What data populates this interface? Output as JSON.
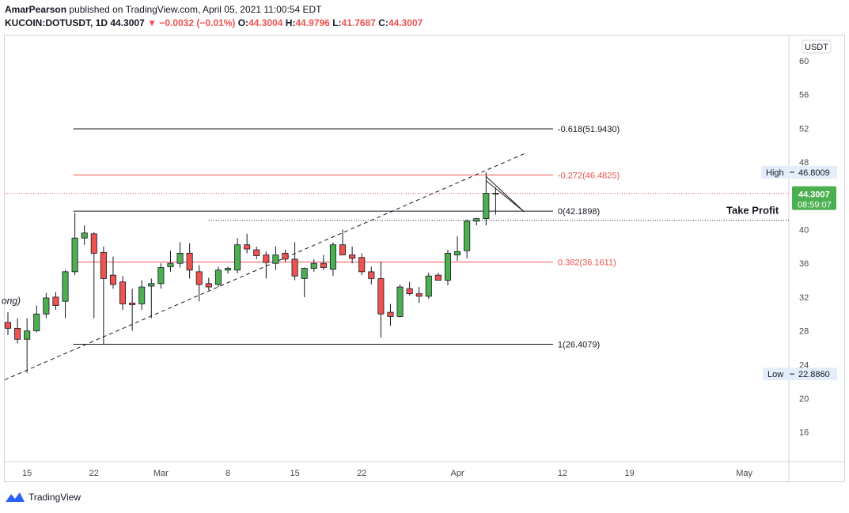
{
  "header": {
    "author": "AmarPearson",
    "published": "published on TradingView.com, April 05, 2021 11:00:54 EDT",
    "symbol": "KUCOIN:DOTUSDT, 1D",
    "last": "44.3007",
    "change": "▼ −0.0032 (−0.01%)",
    "open_label": "O:",
    "open": "44.3004",
    "high_label": "H:",
    "high": "44.9796",
    "low_label": "L:",
    "low": "41.7687",
    "close_label": "C:",
    "close": "44.3007"
  },
  "footer": {
    "brand": "TradingView"
  },
  "colors": {
    "up": "#4caf50",
    "down": "#ef5350",
    "wick": "#131722",
    "fib_red": "#ef5350",
    "fib_black": "#131722"
  },
  "chart_data": {
    "type": "candlestick",
    "currency": "USDT",
    "ylim": [
      12.5,
      63
    ],
    "y_ticks": [
      16,
      20,
      24,
      28,
      32,
      36,
      40,
      44,
      48,
      52,
      56,
      60
    ],
    "x_ticks": [
      {
        "date": "2021-02-15",
        "label": "15"
      },
      {
        "date": "2021-02-22",
        "label": "22"
      },
      {
        "date": "2021-03-01",
        "label": "Mar"
      },
      {
        "date": "2021-03-08",
        "label": "8"
      },
      {
        "date": "2021-03-15",
        "label": "15"
      },
      {
        "date": "2021-03-22",
        "label": "22"
      },
      {
        "date": "2021-04-01",
        "label": "Apr"
      },
      {
        "date": "2021-04-12",
        "label": "12"
      },
      {
        "date": "2021-04-19",
        "label": "19"
      },
      {
        "date": "2021-05-01",
        "label": "May"
      }
    ],
    "x_range": [
      "2021-02-13",
      "2021-05-05"
    ],
    "candles": [
      {
        "date": "2021-02-13",
        "o": 29.0,
        "h": 30.2,
        "l": 27.5,
        "c": 28.3
      },
      {
        "date": "2021-02-14",
        "o": 28.3,
        "h": 29.5,
        "l": 26.5,
        "c": 27.0
      },
      {
        "date": "2021-02-15",
        "o": 27.0,
        "h": 29.5,
        "l": 23.0,
        "c": 28.0
      },
      {
        "date": "2021-02-16",
        "o": 28.0,
        "h": 31.0,
        "l": 27.8,
        "c": 30.0
      },
      {
        "date": "2021-02-17",
        "o": 30.0,
        "h": 32.5,
        "l": 29.5,
        "c": 31.9
      },
      {
        "date": "2021-02-18",
        "o": 32.0,
        "h": 32.6,
        "l": 30.5,
        "c": 31.0
      },
      {
        "date": "2021-02-19",
        "o": 31.5,
        "h": 35.2,
        "l": 29.5,
        "c": 35.0
      },
      {
        "date": "2021-02-20",
        "o": 35.0,
        "h": 42.0,
        "l": 34.6,
        "c": 39.0
      },
      {
        "date": "2021-02-21",
        "o": 39.0,
        "h": 40.5,
        "l": 38.2,
        "c": 39.6
      },
      {
        "date": "2021-02-22",
        "o": 39.5,
        "h": 39.7,
        "l": 29.5,
        "c": 37.2
      },
      {
        "date": "2021-02-23",
        "o": 37.3,
        "h": 38.0,
        "l": 26.4,
        "c": 34.2
      },
      {
        "date": "2021-02-24",
        "o": 34.6,
        "h": 36.8,
        "l": 33.0,
        "c": 33.5
      },
      {
        "date": "2021-02-25",
        "o": 33.8,
        "h": 34.5,
        "l": 30.5,
        "c": 31.2
      },
      {
        "date": "2021-02-26",
        "o": 31.3,
        "h": 33.0,
        "l": 28.0,
        "c": 31.1
      },
      {
        "date": "2021-02-27",
        "o": 31.2,
        "h": 34.0,
        "l": 30.5,
        "c": 33.2
      },
      {
        "date": "2021-02-28",
        "o": 33.3,
        "h": 34.2,
        "l": 29.5,
        "c": 33.6
      },
      {
        "date": "2021-03-01",
        "o": 33.6,
        "h": 36.0,
        "l": 33.0,
        "c": 35.5
      },
      {
        "date": "2021-03-02",
        "o": 35.6,
        "h": 37.5,
        "l": 35.0,
        "c": 36.0
      },
      {
        "date": "2021-03-03",
        "o": 36.0,
        "h": 38.5,
        "l": 35.5,
        "c": 37.2
      },
      {
        "date": "2021-03-04",
        "o": 37.2,
        "h": 38.4,
        "l": 34.2,
        "c": 35.2
      },
      {
        "date": "2021-03-05",
        "o": 35.0,
        "h": 35.8,
        "l": 31.5,
        "c": 33.5
      },
      {
        "date": "2021-03-06",
        "o": 33.6,
        "h": 34.3,
        "l": 32.8,
        "c": 33.2
      },
      {
        "date": "2021-03-07",
        "o": 33.5,
        "h": 35.6,
        "l": 33.2,
        "c": 35.2
      },
      {
        "date": "2021-03-08",
        "o": 35.2,
        "h": 35.6,
        "l": 34.8,
        "c": 35.4
      },
      {
        "date": "2021-03-09",
        "o": 35.2,
        "h": 39.0,
        "l": 34.8,
        "c": 38.2
      },
      {
        "date": "2021-03-10",
        "o": 38.2,
        "h": 39.5,
        "l": 37.2,
        "c": 37.7
      },
      {
        "date": "2021-03-11",
        "o": 37.6,
        "h": 38.0,
        "l": 36.5,
        "c": 36.9
      },
      {
        "date": "2021-03-12",
        "o": 37.0,
        "h": 37.4,
        "l": 34.2,
        "c": 36.1
      },
      {
        "date": "2021-03-13",
        "o": 36.0,
        "h": 38.0,
        "l": 35.2,
        "c": 37.0
      },
      {
        "date": "2021-03-14",
        "o": 37.2,
        "h": 37.6,
        "l": 36.2,
        "c": 36.5
      },
      {
        "date": "2021-03-15",
        "o": 36.5,
        "h": 38.5,
        "l": 34.0,
        "c": 34.5
      },
      {
        "date": "2021-03-16",
        "o": 34.2,
        "h": 35.5,
        "l": 32.0,
        "c": 35.4
      },
      {
        "date": "2021-03-17",
        "o": 35.4,
        "h": 36.5,
        "l": 35.0,
        "c": 36.0
      },
      {
        "date": "2021-03-18",
        "o": 36.0,
        "h": 37.0,
        "l": 35.2,
        "c": 35.5
      },
      {
        "date": "2021-03-19",
        "o": 35.3,
        "h": 38.5,
        "l": 34.5,
        "c": 38.2
      },
      {
        "date": "2021-03-20",
        "o": 38.2,
        "h": 40.0,
        "l": 37.0,
        "c": 37.0
      },
      {
        "date": "2021-03-21",
        "o": 37.0,
        "h": 38.0,
        "l": 36.0,
        "c": 36.6
      },
      {
        "date": "2021-03-22",
        "o": 36.7,
        "h": 37.2,
        "l": 34.6,
        "c": 35.0
      },
      {
        "date": "2021-03-23",
        "o": 35.0,
        "h": 35.6,
        "l": 33.5,
        "c": 34.2
      },
      {
        "date": "2021-03-24",
        "o": 34.2,
        "h": 36.2,
        "l": 27.2,
        "c": 30.0
      },
      {
        "date": "2021-03-25",
        "o": 30.2,
        "h": 31.2,
        "l": 28.6,
        "c": 29.7
      },
      {
        "date": "2021-03-26",
        "o": 29.7,
        "h": 33.5,
        "l": 29.6,
        "c": 33.2
      },
      {
        "date": "2021-03-27",
        "o": 33.0,
        "h": 33.8,
        "l": 32.2,
        "c": 32.4
      },
      {
        "date": "2021-03-28",
        "o": 32.4,
        "h": 33.2,
        "l": 31.3,
        "c": 32.1
      },
      {
        "date": "2021-03-29",
        "o": 32.1,
        "h": 34.9,
        "l": 31.8,
        "c": 34.5
      },
      {
        "date": "2021-03-30",
        "o": 34.6,
        "h": 34.9,
        "l": 34.0,
        "c": 34.0
      },
      {
        "date": "2021-03-31",
        "o": 34.0,
        "h": 37.6,
        "l": 33.4,
        "c": 37.2
      },
      {
        "date": "2021-04-01",
        "o": 37.0,
        "h": 39.2,
        "l": 36.3,
        "c": 37.4
      },
      {
        "date": "2021-04-02",
        "o": 37.5,
        "h": 41.2,
        "l": 36.6,
        "c": 41.0
      },
      {
        "date": "2021-04-03",
        "o": 41.0,
        "h": 41.4,
        "l": 40.5,
        "c": 41.3
      },
      {
        "date": "2021-04-04",
        "o": 41.3,
        "h": 46.8,
        "l": 40.5,
        "c": 44.3
      },
      {
        "date": "2021-04-05",
        "o": 44.3004,
        "h": 44.9796,
        "l": 41.7687,
        "c": 44.3007
      }
    ],
    "fib_levels": [
      {
        "level": -0.618,
        "value": 51.943,
        "label": "-0.618(51.9430)",
        "color": "#131722"
      },
      {
        "level": -0.272,
        "value": 46.4825,
        "label": "-0.272(46.4825)",
        "color": "#ef5350"
      },
      {
        "level": 0,
        "value": 42.1898,
        "label": "0(42.1898)",
        "color": "#131722"
      },
      {
        "level": 0.382,
        "value": 36.1611,
        "label": "0.382(36.1611)",
        "color": "#ef5350"
      },
      {
        "level": 1,
        "value": 26.4079,
        "label": "1(26.4079)",
        "color": "#131722"
      }
    ],
    "fib_range": {
      "start": "2021-02-20",
      "end": "2021-04-11"
    },
    "trendline": {
      "p1": {
        "date": "2021-02-13",
        "price": 22.2
      },
      "p2": {
        "date": "2021-04-08",
        "price": 49.0
      }
    },
    "take_profit": {
      "label": "Take Profit",
      "price": 41.1,
      "start": "2021-03-06"
    },
    "wedge": [
      {
        "date": "2021-04-04",
        "price": 45.8
      },
      {
        "date": "2021-04-08",
        "price": 42.1
      },
      {
        "date": "2021-04-04",
        "price": 46.3
      }
    ],
    "last_price": {
      "value": "44.3007",
      "countdown": "08:59:07",
      "price": 44.3007
    },
    "high_marker": {
      "label": "High",
      "value": "46.8009",
      "price": 46.8009
    },
    "low_marker": {
      "label": "Low",
      "value": "22.8860",
      "price": 22.886
    },
    "partial_label": "ong)"
  }
}
